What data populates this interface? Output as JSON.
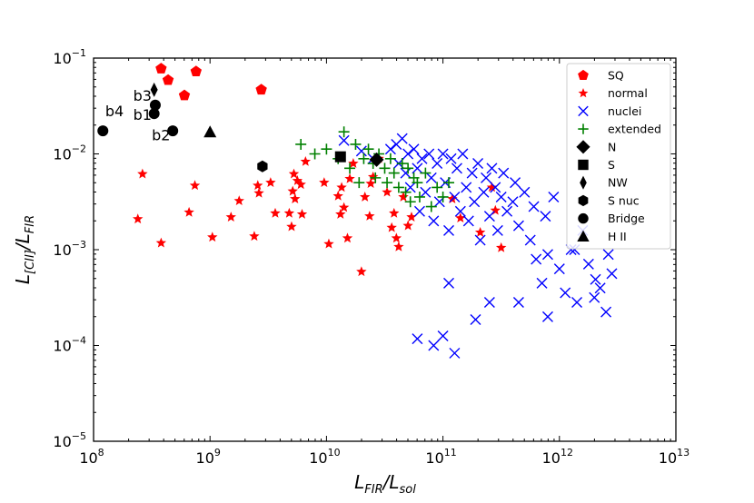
{
  "chart_data": {
    "type": "scatter",
    "title": "",
    "xlabel": "L_FIR/L_sol",
    "ylabel": "L_[CII]/L_FIR",
    "xscale": "log",
    "yscale": "log",
    "xlim_exp": [
      8,
      13
    ],
    "ylim_exp": [
      -5,
      -1
    ],
    "x_tick_labels": [
      "10^8",
      "10^9",
      "10^10",
      "10^11",
      "10^12",
      "10^13"
    ],
    "y_tick_labels": [
      "10^-5",
      "10^-4",
      "10^-3",
      "10^-2",
      "10^-1"
    ],
    "legend_position": "top-right",
    "series": [
      {
        "name": "SQ",
        "marker": "pentagon",
        "color": "#ff0000",
        "points": [
          [
            8.58,
            -1.11
          ],
          [
            8.64,
            -1.23
          ],
          [
            8.88,
            -1.14
          ],
          [
            8.78,
            -1.39
          ],
          [
            9.44,
            -1.33
          ]
        ]
      },
      {
        "name": "normal",
        "marker": "star",
        "color": "#ff0000",
        "points": [
          [
            8.38,
            -2.68
          ],
          [
            8.42,
            -2.21
          ],
          [
            8.58,
            -2.93
          ],
          [
            8.82,
            -2.61
          ],
          [
            8.87,
            -2.33
          ],
          [
            9.02,
            -2.87
          ],
          [
            9.18,
            -2.66
          ],
          [
            9.25,
            -2.49
          ],
          [
            9.38,
            -2.86
          ],
          [
            9.41,
            -2.33
          ],
          [
            9.42,
            -2.41
          ],
          [
            9.52,
            -2.3
          ],
          [
            9.56,
            -2.62
          ],
          [
            9.68,
            -2.62
          ],
          [
            9.7,
            -2.76
          ],
          [
            9.71,
            -2.39
          ],
          [
            9.72,
            -2.21
          ],
          [
            9.73,
            -2.47
          ],
          [
            9.75,
            -2.28
          ],
          [
            9.78,
            -2.32
          ],
          [
            9.79,
            -2.63
          ],
          [
            9.82,
            -2.08
          ],
          [
            9.98,
            -2.3
          ],
          [
            10.02,
            -2.94
          ],
          [
            10.1,
            -2.44
          ],
          [
            10.12,
            -2.63
          ],
          [
            10.13,
            -2.35
          ],
          [
            10.15,
            -2.56
          ],
          [
            10.18,
            -2.88
          ],
          [
            10.2,
            -2.26
          ],
          [
            10.23,
            -2.1
          ],
          [
            10.3,
            -3.23
          ],
          [
            10.33,
            -2.45
          ],
          [
            10.37,
            -2.65
          ],
          [
            10.38,
            -2.31
          ],
          [
            10.4,
            -2.24
          ],
          [
            10.45,
            -2.05
          ],
          [
            10.52,
            -2.4
          ],
          [
            10.56,
            -2.77
          ],
          [
            10.58,
            -2.62
          ],
          [
            10.6,
            -2.88
          ],
          [
            10.62,
            -2.97
          ],
          [
            10.66,
            -2.45
          ],
          [
            10.7,
            -2.75
          ],
          [
            10.73,
            -2.66
          ],
          [
            11.08,
            -2.47
          ],
          [
            11.15,
            -2.67
          ],
          [
            11.32,
            -2.82
          ],
          [
            11.42,
            -2.35
          ],
          [
            11.45,
            -2.59
          ],
          [
            11.5,
            -2.98
          ]
        ]
      },
      {
        "name": "nuclei",
        "marker": "x",
        "color": "#0000ff",
        "points": [
          [
            10.15,
            -1.86
          ],
          [
            10.3,
            -1.97
          ],
          [
            10.4,
            -2.05
          ],
          [
            10.55,
            -1.95
          ],
          [
            10.6,
            -1.9
          ],
          [
            10.62,
            -2.1
          ],
          [
            10.65,
            -1.84
          ],
          [
            10.68,
            -2.2
          ],
          [
            10.7,
            -2.0
          ],
          [
            10.72,
            -2.35
          ],
          [
            10.75,
            -1.95
          ],
          [
            10.78,
            -2.15
          ],
          [
            10.8,
            -2.6
          ],
          [
            10.82,
            -2.05
          ],
          [
            10.85,
            -2.4
          ],
          [
            10.88,
            -2.0
          ],
          [
            10.9,
            -2.25
          ],
          [
            10.92,
            -2.7
          ],
          [
            10.95,
            -2.1
          ],
          [
            10.97,
            -2.5
          ],
          [
            11.0,
            -2.0
          ],
          [
            11.02,
            -2.3
          ],
          [
            11.05,
            -2.8
          ],
          [
            11.07,
            -2.05
          ],
          [
            11.1,
            -2.45
          ],
          [
            11.12,
            -2.15
          ],
          [
            11.15,
            -2.6
          ],
          [
            11.17,
            -2.0
          ],
          [
            11.2,
            -2.35
          ],
          [
            11.22,
            -2.7
          ],
          [
            11.25,
            -2.2
          ],
          [
            11.27,
            -2.5
          ],
          [
            11.3,
            -2.1
          ],
          [
            11.32,
            -2.9
          ],
          [
            11.35,
            -2.4
          ],
          [
            11.37,
            -2.25
          ],
          [
            11.4,
            -2.65
          ],
          [
            11.42,
            -2.15
          ],
          [
            11.45,
            -2.35
          ],
          [
            11.47,
            -2.8
          ],
          [
            11.5,
            -2.45
          ],
          [
            11.52,
            -2.2
          ],
          [
            11.55,
            -2.6
          ],
          [
            11.6,
            -2.5
          ],
          [
            11.62,
            -2.3
          ],
          [
            11.65,
            -2.75
          ],
          [
            11.7,
            -2.4
          ],
          [
            11.75,
            -2.9
          ],
          [
            11.78,
            -2.55
          ],
          [
            11.8,
            -3.1
          ],
          [
            11.85,
            -3.35
          ],
          [
            11.88,
            -2.65
          ],
          [
            11.9,
            -3.05
          ],
          [
            11.95,
            -2.45
          ],
          [
            12.0,
            -3.2
          ],
          [
            12.05,
            -3.45
          ],
          [
            12.1,
            -3.0
          ],
          [
            12.15,
            -3.55
          ],
          [
            12.2,
            -2.8
          ],
          [
            12.25,
            -3.15
          ],
          [
            12.3,
            -3.5
          ],
          [
            12.35,
            -3.4
          ],
          [
            12.4,
            -3.65
          ],
          [
            12.42,
            -3.05
          ],
          [
            12.45,
            -3.25
          ],
          [
            11.0,
            -3.9
          ],
          [
            10.78,
            -3.93
          ],
          [
            11.1,
            -4.08
          ],
          [
            10.92,
            -4.0
          ],
          [
            11.28,
            -3.73
          ],
          [
            11.05,
            -3.35
          ],
          [
            11.65,
            -3.55
          ],
          [
            11.9,
            -3.7
          ],
          [
            11.4,
            -3.55
          ],
          [
            12.13,
            -3.0
          ],
          [
            12.31,
            -3.31
          ]
        ]
      },
      {
        "name": "extended",
        "marker": "plus",
        "color": "#008000",
        "points": [
          [
            9.78,
            -1.9
          ],
          [
            9.9,
            -2.0
          ],
          [
            10.0,
            -1.95
          ],
          [
            10.1,
            -2.05
          ],
          [
            10.15,
            -1.77
          ],
          [
            10.2,
            -2.15
          ],
          [
            10.25,
            -1.9
          ],
          [
            10.28,
            -2.3
          ],
          [
            10.32,
            -2.05
          ],
          [
            10.36,
            -1.95
          ],
          [
            10.4,
            -2.1
          ],
          [
            10.42,
            -2.25
          ],
          [
            10.45,
            -2.0
          ],
          [
            10.5,
            -2.15
          ],
          [
            10.52,
            -2.3
          ],
          [
            10.55,
            -2.05
          ],
          [
            10.58,
            -2.2
          ],
          [
            10.62,
            -2.35
          ],
          [
            10.65,
            -2.1
          ],
          [
            10.68,
            -2.4
          ],
          [
            10.7,
            -2.15
          ],
          [
            10.72,
            -2.5
          ],
          [
            10.75,
            -2.25
          ],
          [
            10.78,
            -2.3
          ],
          [
            10.8,
            -2.45
          ],
          [
            10.85,
            -2.2
          ],
          [
            10.9,
            -2.55
          ],
          [
            10.95,
            -2.35
          ],
          [
            11.0,
            -2.45
          ],
          [
            11.05,
            -2.3
          ]
        ]
      },
      {
        "name": "N",
        "marker": "diamond",
        "color": "#000000",
        "points": [
          [
            10.43,
            -2.06
          ]
        ]
      },
      {
        "name": "S",
        "marker": "square",
        "color": "#000000",
        "points": [
          [
            10.12,
            -2.03
          ]
        ]
      },
      {
        "name": "NW",
        "marker": "thin_diamond",
        "color": "#000000",
        "points": [
          [
            8.52,
            -1.33
          ]
        ]
      },
      {
        "name": "S nuc",
        "marker": "hexagon",
        "color": "#000000",
        "points": [
          [
            9.45,
            -2.13
          ]
        ]
      },
      {
        "name": "Bridge",
        "marker": "circle",
        "color": "#000000",
        "points": [
          [
            8.08,
            -1.76
          ],
          [
            8.53,
            -1.49
          ],
          [
            8.52,
            -1.58
          ],
          [
            8.68,
            -1.76
          ]
        ]
      },
      {
        "name": "H II",
        "marker": "triangle",
        "color": "#000000",
        "points": [
          [
            9.0,
            -1.77
          ]
        ]
      }
    ],
    "annotations": [
      {
        "text": "b3",
        "x": 8.34,
        "y": -1.39
      },
      {
        "text": "b1",
        "x": 8.34,
        "y": -1.59
      },
      {
        "text": "b4",
        "x": 8.1,
        "y": -1.55
      },
      {
        "text": "b2",
        "x": 8.5,
        "y": -1.8
      }
    ]
  }
}
